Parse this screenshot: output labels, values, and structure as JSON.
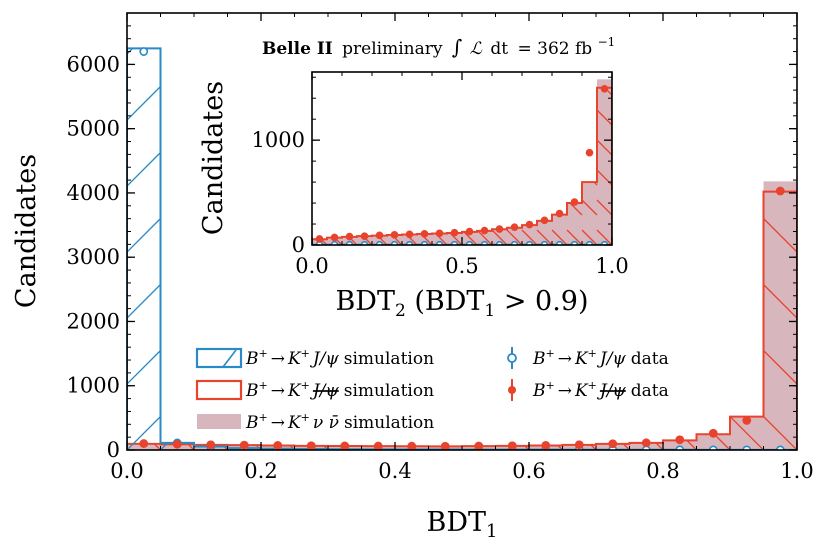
{
  "colors": {
    "jpsi": "#2a8ac5",
    "veto": "#e8432c",
    "signal": "#d8b6bd",
    "axis": "#000000"
  },
  "chart_data": [
    {
      "type": "histogram",
      "name": "main",
      "xlabel": "BDT",
      "xlabel_sub": "1",
      "ylabel": "Candidates",
      "xlim": [
        0,
        1
      ],
      "ylim": [
        0,
        6800
      ],
      "xticks": [
        0.0,
        0.2,
        0.4,
        0.6,
        0.8,
        1.0
      ],
      "xtick_labels": [
        "0.0",
        "0.2",
        "0.4",
        "0.6",
        "0.8",
        "1.0"
      ],
      "yticks": [
        0,
        1000,
        2000,
        3000,
        4000,
        5000,
        6000
      ],
      "ytick_labels": [
        "0",
        "1000",
        "2000",
        "3000",
        "4000",
        "5000",
        "6000"
      ],
      "bin_edges": [
        0.0,
        0.05,
        0.1,
        0.15,
        0.2,
        0.25,
        0.3,
        0.35,
        0.4,
        0.45,
        0.5,
        0.55,
        0.6,
        0.65,
        0.7,
        0.75,
        0.8,
        0.85,
        0.9,
        0.95,
        1.0
      ],
      "series": [
        {
          "name": "jpsi_sim",
          "values": [
            6250,
            110,
            55,
            30,
            20,
            15,
            12,
            10,
            8,
            7,
            6,
            5,
            5,
            4,
            4,
            3,
            3,
            2,
            2,
            1
          ]
        },
        {
          "name": "veto_sim",
          "values": [
            95,
            88,
            80,
            75,
            70,
            65,
            62,
            60,
            58,
            57,
            60,
            65,
            70,
            80,
            95,
            110,
            150,
            245,
            520,
            4020
          ]
        },
        {
          "name": "signal_sim",
          "values": [
            80,
            75,
            70,
            65,
            60,
            55,
            55,
            52,
            50,
            50,
            52,
            58,
            62,
            72,
            88,
            105,
            145,
            240,
            510,
            4180
          ]
        },
        {
          "name": "jpsi_data",
          "values": [
            6200,
            110,
            50,
            28,
            18,
            14,
            11,
            9,
            8,
            7,
            6,
            5,
            5,
            4,
            4,
            3,
            3,
            2,
            2,
            1
          ]
        },
        {
          "name": "veto_data",
          "values": [
            100,
            90,
            82,
            76,
            71,
            66,
            63,
            61,
            59,
            58,
            62,
            66,
            72,
            82,
            97,
            112,
            160,
            260,
            460,
            4030
          ]
        }
      ]
    },
    {
      "type": "histogram",
      "name": "inset",
      "xlabel": "BDT",
      "xlabel_sub": "2",
      "xlabel_cond_pre": "(BDT",
      "xlabel_cond_sub": "1",
      "xlabel_cond_post": "> 0.9)",
      "ylabel": "Candidates",
      "xlim": [
        0,
        1
      ],
      "ylim": [
        0,
        1650
      ],
      "xticks": [
        0.0,
        0.5,
        1.0
      ],
      "xtick_labels": [
        "0.0",
        "0.5",
        "1.0"
      ],
      "yticks": [
        0,
        1000
      ],
      "ytick_labels": [
        "0",
        "1000"
      ],
      "bin_edges": [
        0.0,
        0.05,
        0.1,
        0.15,
        0.2,
        0.25,
        0.3,
        0.35,
        0.4,
        0.45,
        0.5,
        0.55,
        0.6,
        0.65,
        0.7,
        0.75,
        0.8,
        0.85,
        0.9,
        0.95,
        1.0
      ],
      "series": [
        {
          "name": "veto_sim",
          "values": [
            55,
            70,
            78,
            85,
            90,
            95,
            100,
            105,
            110,
            115,
            125,
            135,
            150,
            165,
            190,
            230,
            290,
            400,
            600,
            1500
          ]
        },
        {
          "name": "signal_sim",
          "values": [
            50,
            65,
            75,
            82,
            88,
            92,
            98,
            103,
            108,
            113,
            122,
            132,
            148,
            162,
            188,
            225,
            285,
            395,
            590,
            1580
          ]
        },
        {
          "name": "jpsi_sim",
          "values": [
            2,
            2,
            2,
            2,
            2,
            2,
            2,
            2,
            2,
            2,
            2,
            2,
            2,
            2,
            2,
            2,
            2,
            2,
            2,
            2
          ]
        },
        {
          "name": "veto_data",
          "values": [
            58,
            72,
            80,
            84,
            92,
            97,
            102,
            107,
            112,
            118,
            128,
            138,
            152,
            170,
            195,
            235,
            300,
            410,
            880,
            1490
          ]
        },
        {
          "name": "jpsi_data",
          "values": [
            3,
            3,
            3,
            3,
            3,
            3,
            3,
            3,
            3,
            3,
            3,
            3,
            3,
            3,
            3,
            3,
            3,
            3,
            3,
            3
          ]
        }
      ]
    }
  ],
  "annotation": {
    "bold": "Belle II",
    "text": "preliminary",
    "int_sign": "∫",
    "lumi_symbol": "ℒ",
    "dt": "dt",
    "equals": "= 362 fb",
    "exponent": "−1"
  },
  "legend": {
    "items": [
      {
        "name": "jpsi_sim",
        "a": "B",
        "a_sup": "+",
        "arrow": "→",
        "k": "K",
        "k_sup": "+",
        "tail": "J/ψ",
        "label": "simulation"
      },
      {
        "name": "jpsi_data",
        "a": "B",
        "a_sup": "+",
        "arrow": "→",
        "k": "K",
        "k_sup": "+",
        "tail": "J/ψ",
        "label": "data"
      },
      {
        "name": "veto_sim",
        "a": "B",
        "a_sup": "+",
        "arrow": "→",
        "k": "K",
        "k_sup": "+",
        "tail": "J/ψ",
        "label": "simulation"
      },
      {
        "name": "veto_data",
        "a": "B",
        "a_sup": "+",
        "arrow": "→",
        "k": "K",
        "k_sup": "+",
        "tail": "J/ψ",
        "label": "data"
      },
      {
        "name": "signal_sim",
        "a": "B",
        "a_sup": "+",
        "arrow": "→",
        "k": "K",
        "k_sup": "+",
        "tail": "ν ν̄",
        "label": "simulation"
      }
    ]
  }
}
